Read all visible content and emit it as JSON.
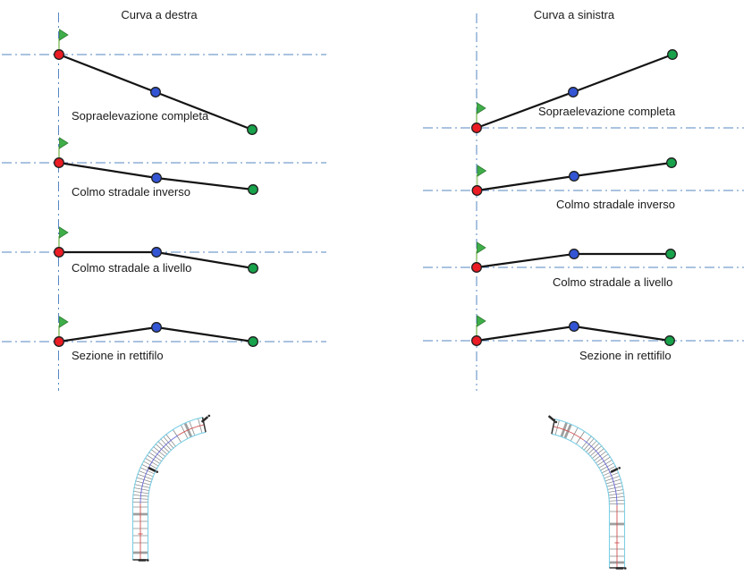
{
  "left_panel": {
    "title": "Curva a destra",
    "rows": [
      {
        "label": "Sopraelevazione completa"
      },
      {
        "label": "Colmo stradale inverso"
      },
      {
        "label": "Colmo stradale a livello"
      },
      {
        "label": "Sezione in rettifilo"
      }
    ]
  },
  "right_panel": {
    "title": "Curva a sinistra",
    "rows": [
      {
        "label": "Sopraelevazione completa"
      },
      {
        "label": "Colmo stradale inverso"
      },
      {
        "label": "Colmo stradale a livello"
      },
      {
        "label": "Sezione in rettifilo"
      }
    ]
  },
  "colors": {
    "guide_line": "#5587C2",
    "section_line": "#141414",
    "point_red": "#EB1C24",
    "point_blue": "#3355D4",
    "point_green": "#18A24B",
    "point_outline": "#1F1F1F",
    "flag_stem": "#A9D18E",
    "flag_fill": "#3FAE49",
    "flag_outline": "#2E7D32",
    "road_edge": "#7ED0E6",
    "road_center_red": "#D05050",
    "road_center_blue": "#6A6AD8",
    "road_tick": "#8A8A8A",
    "road_tick_bold": "#9F9F9F",
    "road_tick_dense": "#787878",
    "road_cap": "#333333",
    "station_marker": "#2B2B2B",
    "text": "#1A1A1A",
    "background": "#FFFFFF"
  }
}
